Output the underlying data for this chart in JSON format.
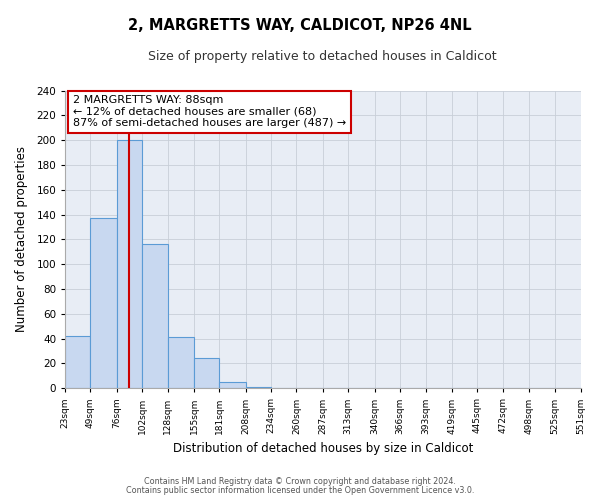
{
  "title": "2, MARGRETTS WAY, CALDICOT, NP26 4NL",
  "subtitle": "Size of property relative to detached houses in Caldicot",
  "xlabel": "Distribution of detached houses by size in Caldicot",
  "ylabel": "Number of detached properties",
  "bin_edges": [
    23,
    49,
    76,
    102,
    128,
    155,
    181,
    208,
    234,
    260,
    287,
    313,
    340,
    366,
    393,
    419,
    445,
    472,
    498,
    525,
    551
  ],
  "bar_heights": [
    42,
    137,
    200,
    116,
    41,
    24,
    5,
    1,
    0,
    0,
    0,
    0,
    0,
    0,
    0,
    0,
    0,
    0,
    0,
    0
  ],
  "bar_color": "#c8d8f0",
  "bar_edge_color": "#5b9bd5",
  "property_size": 88,
  "vline_color": "#cc0000",
  "ylim": [
    0,
    240
  ],
  "yticks": [
    0,
    20,
    40,
    60,
    80,
    100,
    120,
    140,
    160,
    180,
    200,
    220,
    240
  ],
  "annotation_line1": "2 MARGRETTS WAY: 88sqm",
  "annotation_line2": "← 12% of detached houses are smaller (68)",
  "annotation_line3": "87% of semi-detached houses are larger (487) →",
  "annotation_box_color": "#ffffff",
  "annotation_box_edge_color": "#cc0000",
  "footer_line1": "Contains HM Land Registry data © Crown copyright and database right 2024.",
  "footer_line2": "Contains public sector information licensed under the Open Government Licence v3.0.",
  "fig_background_color": "#ffffff",
  "plot_background_color": "#e8edf5",
  "grid_color": "#c8cfd8",
  "spine_color": "#aaaaaa"
}
